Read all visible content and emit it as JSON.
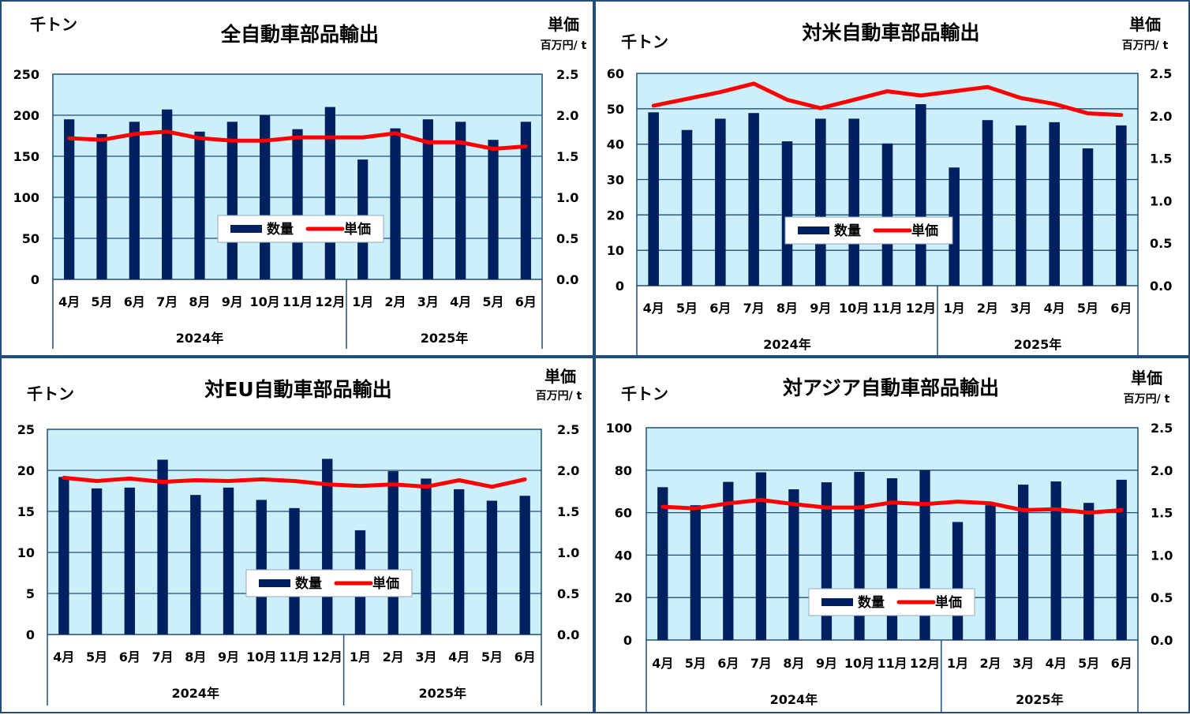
{
  "colors": {
    "bar": "#002060",
    "line": "#ff0000",
    "plot_bg": "#cdeffa",
    "grid": "#1f4e79",
    "border": "#1f4e79"
  },
  "legend": {
    "bar_label": "数量",
    "line_label": "単価"
  },
  "left_unit": "千トン",
  "right_unit": "単価",
  "right_unit_sub": "百万円/ t",
  "chart_data": [
    {
      "type": "bar",
      "title": "全自動車部品輸出",
      "categories": [
        "4月",
        "5月",
        "6月",
        "7月",
        "8月",
        "9月",
        "10月",
        "11月",
        "12月",
        "1月",
        "2月",
        "3月",
        "4月",
        "5月",
        "6月"
      ],
      "year_groups": [
        {
          "label": "2024年",
          "count": 9
        },
        {
          "label": "2025年",
          "count": 6
        }
      ],
      "ylim": [
        0,
        250
      ],
      "yticks": [
        "0",
        "50",
        "100",
        "150",
        "200",
        "250"
      ],
      "y2lim": [
        0,
        2.5
      ],
      "y2ticks": [
        "0.0",
        "0.5",
        "1.0",
        "1.5",
        "2.0",
        "2.5"
      ],
      "series": [
        {
          "name": "数量",
          "type": "bar",
          "axis": "left",
          "values": [
            195,
            177,
            192,
            207,
            180,
            192,
            200,
            183,
            210,
            146,
            184,
            195,
            192,
            170,
            192
          ]
        },
        {
          "name": "単価",
          "type": "line",
          "axis": "right",
          "values": [
            1.72,
            1.7,
            1.77,
            1.8,
            1.72,
            1.69,
            1.69,
            1.73,
            1.73,
            1.73,
            1.78,
            1.67,
            1.67,
            1.59,
            1.62
          ]
        }
      ],
      "grid": true,
      "legend_position": "center"
    },
    {
      "type": "bar",
      "title": "対米自動車部品輸出",
      "categories": [
        "4月",
        "5月",
        "6月",
        "7月",
        "8月",
        "9月",
        "10月",
        "11月",
        "12月",
        "1月",
        "2月",
        "3月",
        "4月",
        "5月",
        "6月"
      ],
      "year_groups": [
        {
          "label": "2024年",
          "count": 9
        },
        {
          "label": "2025年",
          "count": 6
        }
      ],
      "ylim": [
        0,
        60
      ],
      "yticks": [
        "0",
        "10",
        "20",
        "30",
        "40",
        "50",
        "60"
      ],
      "y2lim": [
        0,
        2.5
      ],
      "y2ticks": [
        "0.0",
        "0.5",
        "1.0",
        "1.5",
        "2.0",
        "2.5"
      ],
      "series": [
        {
          "name": "数量",
          "type": "bar",
          "axis": "left",
          "values": [
            49,
            44,
            47.2,
            48.8,
            40.8,
            47.2,
            47.2,
            40.2,
            51.3,
            33.4,
            46.8,
            45.3,
            46.2,
            38.8,
            45.3
          ]
        },
        {
          "name": "単価",
          "type": "line",
          "axis": "right",
          "values": [
            2.12,
            2.2,
            2.28,
            2.38,
            2.19,
            2.09,
            2.19,
            2.29,
            2.24,
            2.29,
            2.34,
            2.21,
            2.14,
            2.03,
            2.01
          ]
        }
      ],
      "grid": true,
      "legend_position": "center"
    },
    {
      "type": "bar",
      "title": "対EU自動車部品輸出",
      "categories": [
        "4月",
        "5月",
        "6月",
        "7月",
        "8月",
        "9月",
        "10月",
        "11月",
        "12月",
        "1月",
        "2月",
        "3月",
        "4月",
        "5月",
        "6月"
      ],
      "year_groups": [
        {
          "label": "2024年",
          "count": 9
        },
        {
          "label": "2025年",
          "count": 6
        }
      ],
      "ylim": [
        0,
        25
      ],
      "yticks": [
        "0",
        "5",
        "10",
        "15",
        "20",
        "25"
      ],
      "y2lim": [
        0,
        2.5
      ],
      "y2ticks": [
        "0.0",
        "0.5",
        "1.0",
        "1.5",
        "2.0",
        "2.5"
      ],
      "series": [
        {
          "name": "数量",
          "type": "bar",
          "axis": "left",
          "values": [
            19.2,
            17.8,
            17.9,
            21.3,
            17,
            17.9,
            16.4,
            15.4,
            21.4,
            12.7,
            19.9,
            19,
            17.7,
            16.3,
            16.9
          ]
        },
        {
          "name": "単価",
          "type": "line",
          "axis": "right",
          "values": [
            1.91,
            1.87,
            1.9,
            1.86,
            1.88,
            1.87,
            1.89,
            1.87,
            1.83,
            1.81,
            1.83,
            1.8,
            1.88,
            1.8,
            1.89
          ]
        }
      ],
      "grid": true,
      "legend_position": "center"
    },
    {
      "type": "bar",
      "title": "対アジア自動車部品輸出",
      "categories": [
        "4月",
        "5月",
        "6月",
        "7月",
        "8月",
        "9月",
        "10月",
        "11月",
        "12月",
        "1月",
        "2月",
        "3月",
        "4月",
        "5月",
        "6月"
      ],
      "year_groups": [
        {
          "label": "2024年",
          "count": 9
        },
        {
          "label": "2025年",
          "count": 6
        }
      ],
      "ylim": [
        0,
        100
      ],
      "yticks": [
        "0",
        "20",
        "40",
        "60",
        "80",
        "100"
      ],
      "y2lim": [
        0,
        2.5
      ],
      "y2ticks": [
        "0.0",
        "0.5",
        "1.0",
        "1.5",
        "2.0",
        "2.5"
      ],
      "series": [
        {
          "name": "数量",
          "type": "bar",
          "axis": "left",
          "values": [
            72,
            63.5,
            74.5,
            79,
            71,
            74.3,
            79.2,
            76.2,
            80,
            55.6,
            63.5,
            73.2,
            74.7,
            64.6,
            75.5
          ]
        },
        {
          "name": "単価",
          "type": "line",
          "axis": "right",
          "values": [
            1.57,
            1.55,
            1.61,
            1.65,
            1.6,
            1.56,
            1.56,
            1.62,
            1.6,
            1.63,
            1.61,
            1.53,
            1.54,
            1.5,
            1.53
          ]
        }
      ],
      "grid": true,
      "legend_position": "center"
    }
  ]
}
